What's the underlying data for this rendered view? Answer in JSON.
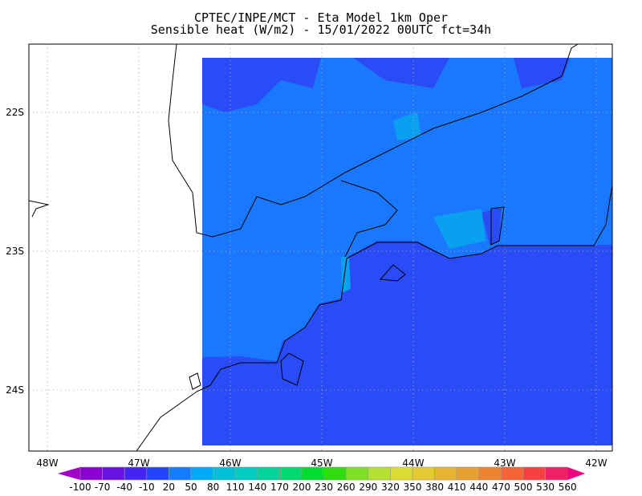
{
  "title_line1": "CPTEC/INPE/MCT -  Eta Model 1km Oper",
  "title_line2": "Sensible heat (W/m2) - 15/01/2022 00UTC fct=34h",
  "chart_data": {
    "type": "heatmap",
    "title": "Sensible heat (W/m2) - 15/01/2022 00UTC fct=34h",
    "x_ticks": [
      "48W",
      "47W",
      "46W",
      "45W",
      "44W",
      "43W",
      "42W"
    ],
    "x_tick_values": [
      -48,
      -47,
      -46,
      -45,
      -44,
      -43,
      -42
    ],
    "y_ticks": [
      "22S",
      "23S",
      "24S"
    ],
    "y_tick_values": [
      -22,
      -23,
      -24
    ],
    "xlim": [
      -48.2,
      -41.8
    ],
    "ylim": [
      -24.45,
      -21.5
    ],
    "grid": true,
    "field_summary": {
      "ocean_bin": "-10 to 20",
      "land_bin": "20 to 50",
      "land_patches_bin": "50 to 80"
    },
    "colorbar": {
      "levels": [
        -100,
        -70,
        -40,
        -10,
        20,
        50,
        80,
        110,
        140,
        170,
        200,
        230,
        260,
        290,
        320,
        350,
        380,
        410,
        440,
        470,
        500,
        530,
        560
      ],
      "labels": [
        "-100",
        "-70",
        "-40",
        "-10",
        "20",
        "50",
        "80",
        "110",
        "140",
        "170",
        "200",
        "230",
        "260",
        "290",
        "320",
        "350",
        "380",
        "410",
        "440",
        "470",
        "500",
        "530",
        "560"
      ],
      "colors": [
        "#8a00d2",
        "#6a12e2",
        "#4424f2",
        "#2244fc",
        "#167cff",
        "#00aaf8",
        "#00c0d8",
        "#00ccc0",
        "#00d498",
        "#00d870",
        "#00dc30",
        "#30dc10",
        "#80e028",
        "#b4e034",
        "#dcdc34",
        "#e6c834",
        "#e6b432",
        "#e8a032",
        "#ee8430",
        "#f46434",
        "#f84040",
        "#f02064"
      ],
      "under_color": "#a000c8",
      "over_color": "#f00080"
    }
  }
}
